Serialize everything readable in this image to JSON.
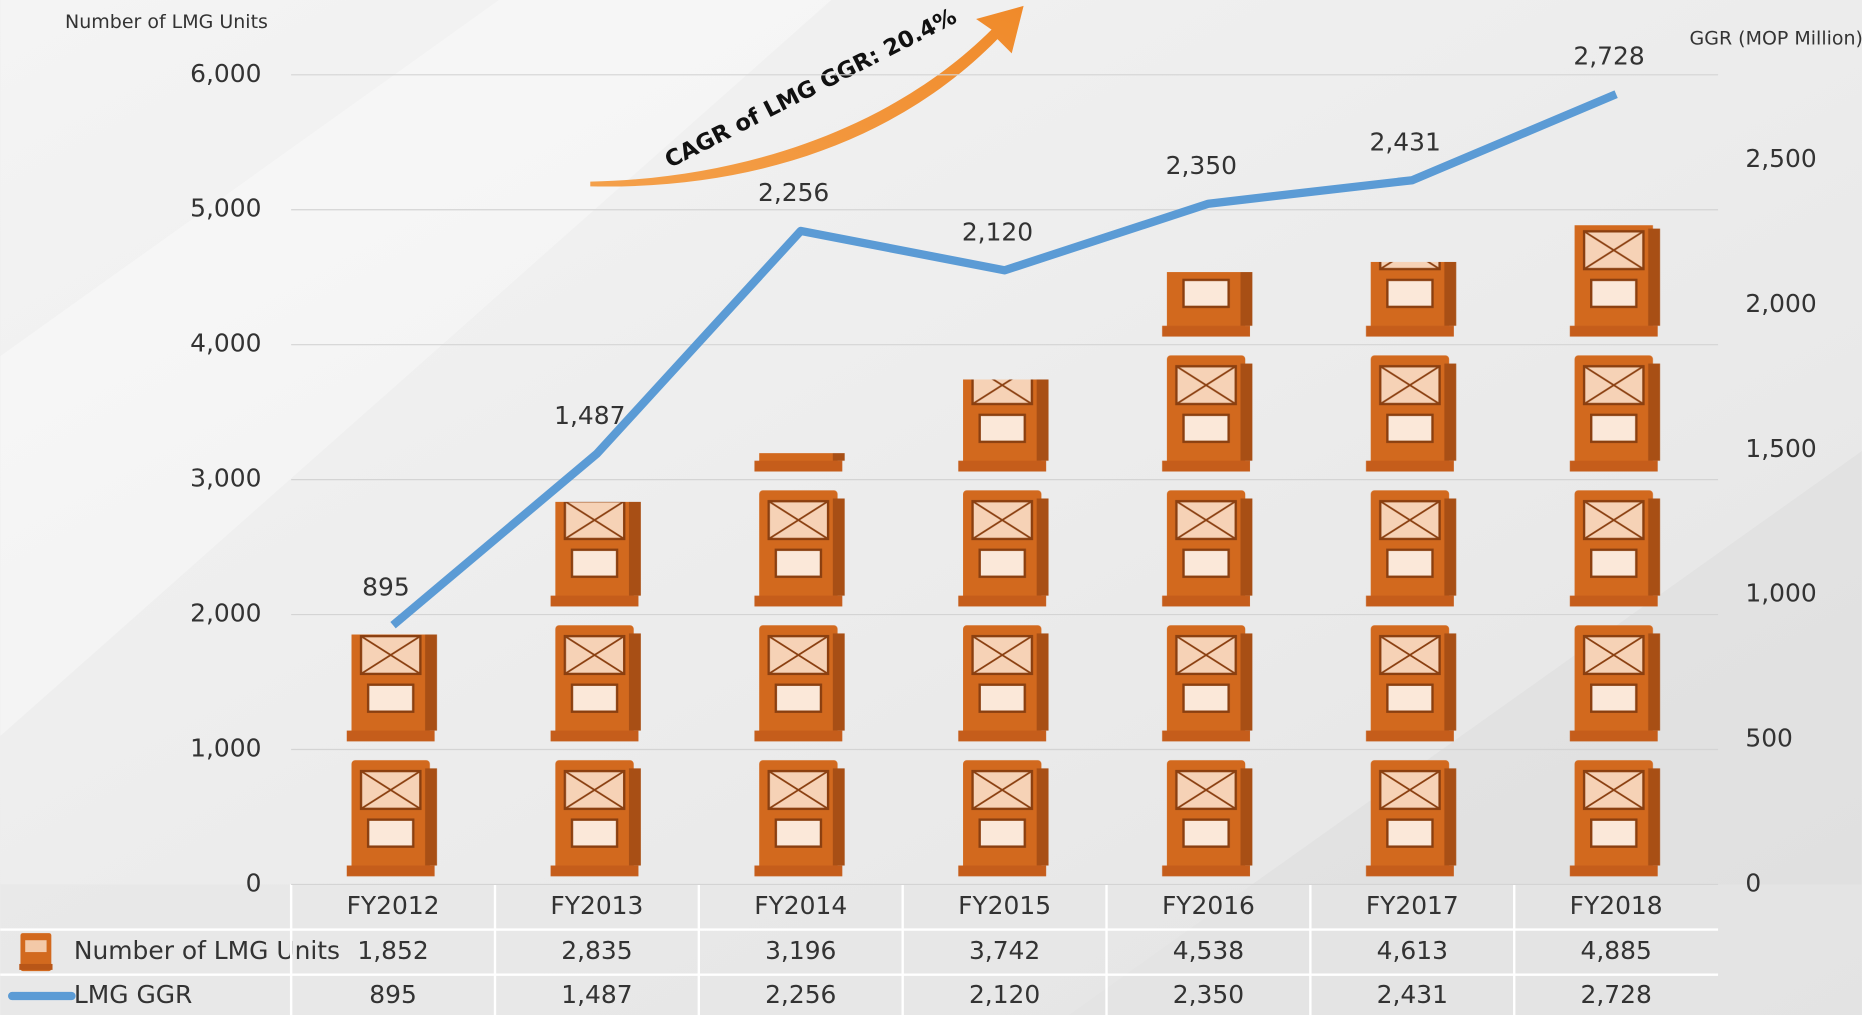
{
  "chart_data": {
    "type": "bar-line",
    "y_axis_label": "Number of LMG Units",
    "y2_axis_label": "GGR (MOP Million)",
    "annotation": "CAGR of LMG GGR: 20.4%",
    "categories": [
      "FY2012",
      "FY2013",
      "FY2014",
      "FY2015",
      "FY2016",
      "FY2017",
      "FY2018"
    ],
    "series": [
      {
        "name": "Number of LMG Units",
        "type": "bar",
        "color": "#d2691e",
        "values": [
          1852,
          2835,
          3196,
          3742,
          4538,
          4613,
          4885
        ],
        "value_labels": [
          "1,852",
          "2,835",
          "3,196",
          "3,742",
          "4,538",
          "4,613",
          "4,885"
        ]
      },
      {
        "name": "LMG GGR",
        "type": "line",
        "axis": "y2",
        "color": "#5b9bd5",
        "values": [
          895,
          1487,
          2256,
          2120,
          2350,
          2431,
          2728
        ],
        "value_labels": [
          "895",
          "1,487",
          "2,256",
          "2,120",
          "2,350",
          "2,431",
          "2,728"
        ]
      }
    ],
    "ylim": [
      0,
      6000
    ],
    "yticks": [
      0,
      {
        "value": 1000,
        "label": "1,000"
      },
      {
        "value": 2000,
        "label": "2,000"
      },
      {
        "value": 3000,
        "label": "3,000"
      },
      {
        "value": 4000,
        "label": "4,000"
      },
      {
        "value": 5000,
        "label": "5,000"
      },
      {
        "value": 6000,
        "label": "6,000"
      }
    ],
    "y2lim": [
      0,
      2795
    ],
    "y2ticks": [
      0,
      500,
      {
        "value": 1000,
        "label": "1,000"
      },
      {
        "value": 1500,
        "label": "1,500"
      },
      {
        "value": 2000,
        "label": "2,000"
      },
      {
        "value": 2500,
        "label": "2,500"
      }
    ],
    "grid": true
  }
}
